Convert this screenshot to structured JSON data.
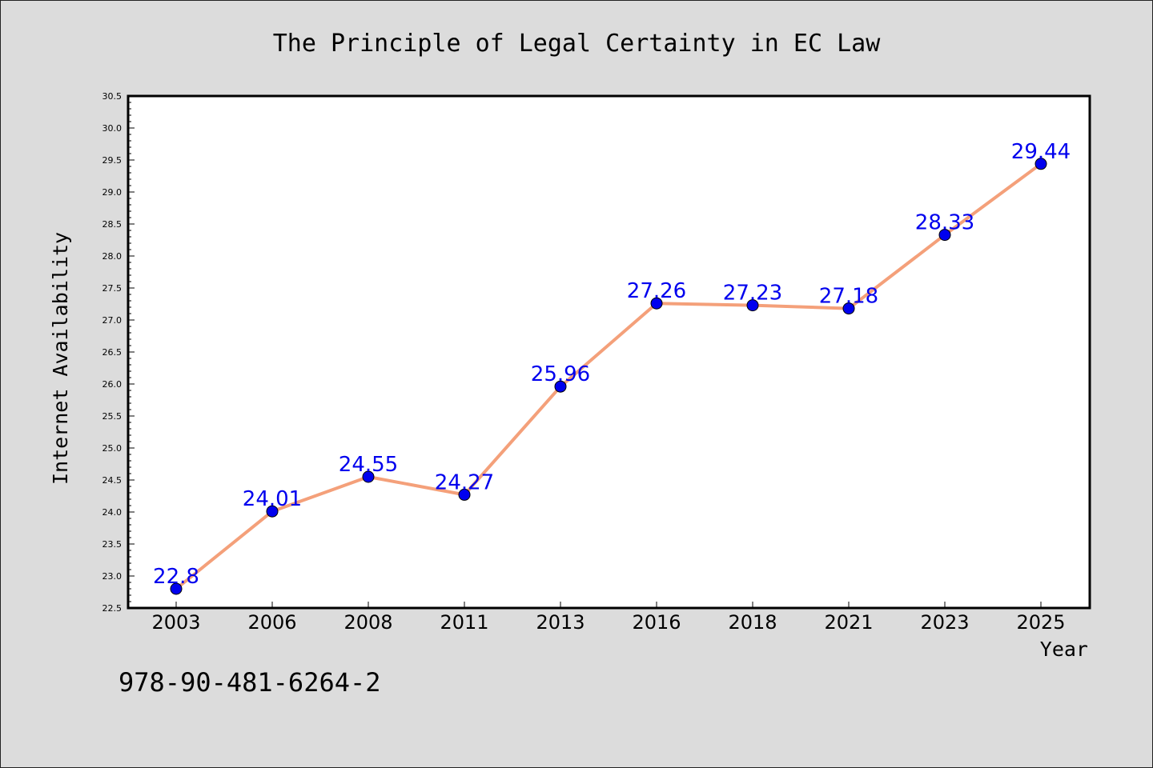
{
  "chart_data": {
    "type": "line",
    "title": "The Principle of Legal Certainty in EC Law",
    "xlabel": "Year",
    "ylabel": "Internet Availability",
    "categories": [
      "2003",
      "2006",
      "2008",
      "2011",
      "2013",
      "2016",
      "2018",
      "2021",
      "2023",
      "2025"
    ],
    "series": [
      {
        "values": [
          22.8,
          24.01,
          24.55,
          24.27,
          25.96,
          27.26,
          27.23,
          27.18,
          28.33,
          29.44
        ],
        "labels": [
          "22.8",
          "24.01",
          "24.55",
          "24.27",
          "25.96",
          "27.26",
          "27.23",
          "27.18",
          "28.33",
          "29.44"
        ],
        "line_color": "#f4a07a",
        "marker_color": "#0000ee"
      }
    ],
    "ylim": [
      22.5,
      30.5
    ],
    "yticks": [
      "22.5",
      "23.0",
      "23.5",
      "24.0",
      "24.5",
      "25.0",
      "25.5",
      "26.0",
      "26.5",
      "27.0",
      "27.5",
      "28.0",
      "28.5",
      "29.0",
      "29.5",
      "30.0",
      "30.5"
    ],
    "grid": false,
    "legend": "none"
  },
  "footer": {
    "isbn": "978-90-481-6264-2"
  }
}
